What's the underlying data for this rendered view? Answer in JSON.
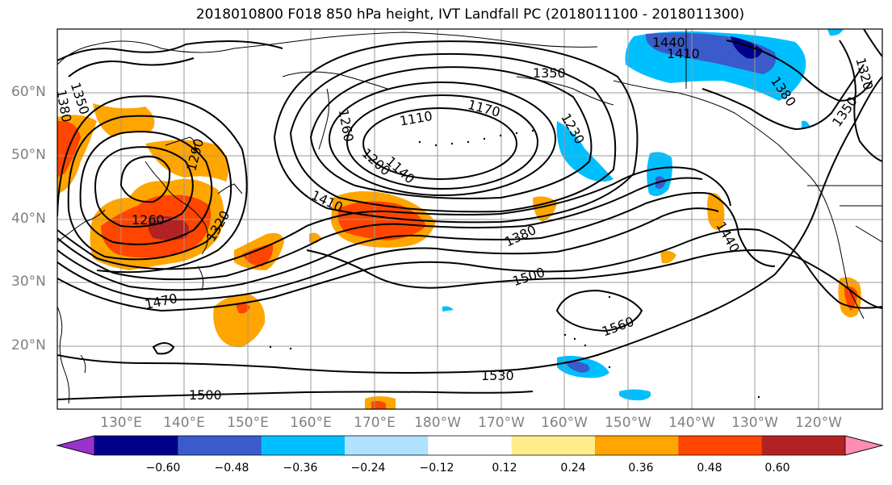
{
  "title": "2018010800 F018 850 hPa height, IVT Landfall PC (2018011100 - 2018011300)",
  "map": {
    "lat_labels": [
      "60°N",
      "50°N",
      "40°N",
      "30°N",
      "20°N"
    ],
    "lon_labels": [
      "130°E",
      "140°E",
      "150°E",
      "160°E",
      "170°E",
      "180°W",
      "170°W",
      "160°W",
      "150°W",
      "140°W",
      "130°W",
      "120°W"
    ],
    "contour_labels": [
      "1440",
      "1410",
      "1350",
      "1380",
      "1320",
      "1350",
      "1380",
      "1350",
      "1170",
      "1110",
      "1260",
      "1230",
      "1290",
      "1200",
      "1140",
      "1410",
      "1380",
      "1260",
      "1320",
      "1500",
      "1440",
      "1470",
      "1560",
      "1530",
      "1500"
    ]
  },
  "colorbar": {
    "tick_labels": [
      "−0.60",
      "−0.48",
      "−0.36",
      "−0.24",
      "−0.12",
      "0.12",
      "0.24",
      "0.36",
      "0.48",
      "0.60"
    ],
    "colors": [
      "#9932CC",
      "#00008B",
      "#3A5BC9",
      "#00BFFF",
      "#B0E2FF",
      "#FFFFFF",
      "#FFEC8B",
      "#FFA500",
      "#FF4500",
      "#B22222",
      "#FF8CB4"
    ]
  }
}
